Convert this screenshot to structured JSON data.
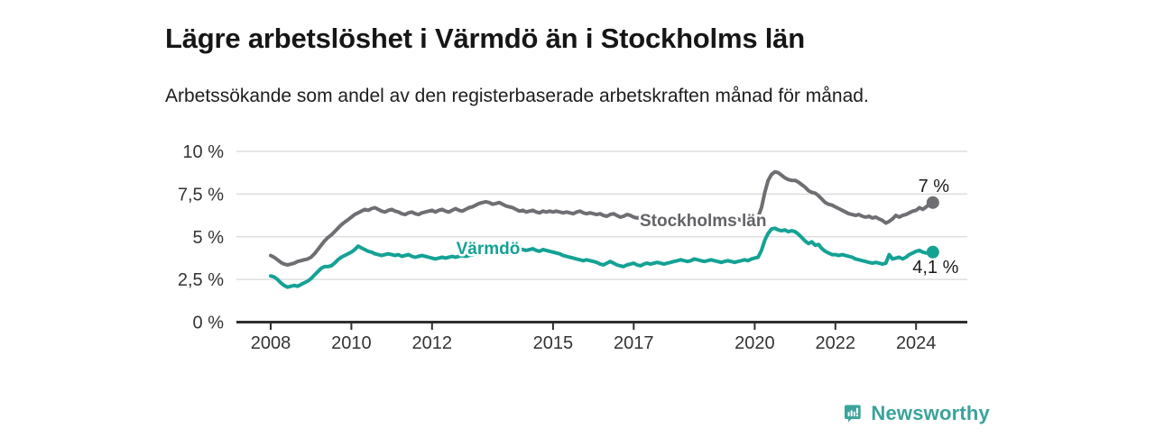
{
  "header": {
    "title": "Lägre arbetslöshet i Värmdö än i Stockholms län",
    "subtitle": "Arbetssökande som andel av den registerbaserade arbetskraften månad för månad."
  },
  "footer": {
    "brand": "Newsworthy",
    "brand_color": "#3ba39b",
    "logo_icon": "bar-chart-speech-bubble"
  },
  "chart_data": {
    "type": "line",
    "title": "Lägre arbetslöshet i Värmdö än i Stockholms län",
    "subtitle": "Arbetssökande som andel av den registerbaserade arbetskraften månad för månad.",
    "xlabel": "",
    "ylabel": "",
    "grid": true,
    "grid_color": "#d8d8d8",
    "axis_color": "#2e2e2e",
    "tick_text_color": "#333333",
    "end_label_color": "#1a1a1a",
    "ylim": [
      0,
      10
    ],
    "xlim_years": [
      2007.15,
      2025.3
    ],
    "x_start_year": 2008,
    "x_interval_months": 1,
    "y_ticks": [
      {
        "value": 0,
        "label": "0 %"
      },
      {
        "value": 2.5,
        "label": "2,5 %"
      },
      {
        "value": 5,
        "label": "5 %"
      },
      {
        "value": 7.5,
        "label": "7,5 %"
      },
      {
        "value": 10,
        "label": "10 %"
      }
    ],
    "x_ticks": [
      {
        "value": 2008,
        "label": "2008"
      },
      {
        "value": 2010,
        "label": "2010"
      },
      {
        "value": 2012,
        "label": "2012"
      },
      {
        "value": 2015,
        "label": "2015"
      },
      {
        "value": 2017,
        "label": "2017"
      },
      {
        "value": 2020,
        "label": "2020"
      },
      {
        "value": 2022,
        "label": "2022"
      },
      {
        "value": 2024,
        "label": "2024"
      }
    ],
    "series": [
      {
        "name": "Stockholms län",
        "color": "#6e6e73",
        "label_color": "#636368",
        "end_label": "7 %",
        "end_label_offset": [
          1,
          -12
        ],
        "end_dot": true,
        "label_pos": {
          "x": 2017.15,
          "y": 6.0,
          "anchor": "start"
        },
        "values": [
          3.9,
          3.8,
          3.65,
          3.5,
          3.4,
          3.35,
          3.4,
          3.45,
          3.55,
          3.6,
          3.65,
          3.7,
          3.8,
          4.0,
          4.25,
          4.5,
          4.75,
          4.95,
          5.1,
          5.3,
          5.5,
          5.7,
          5.85,
          6.0,
          6.15,
          6.3,
          6.4,
          6.5,
          6.6,
          6.55,
          6.65,
          6.7,
          6.6,
          6.5,
          6.45,
          6.55,
          6.6,
          6.5,
          6.45,
          6.35,
          6.3,
          6.4,
          6.45,
          6.35,
          6.3,
          6.4,
          6.45,
          6.5,
          6.55,
          6.45,
          6.55,
          6.6,
          6.5,
          6.45,
          6.55,
          6.65,
          6.55,
          6.5,
          6.6,
          6.7,
          6.75,
          6.85,
          6.95,
          7.0,
          7.05,
          7.0,
          6.9,
          6.95,
          7.0,
          6.9,
          6.8,
          6.75,
          6.7,
          6.6,
          6.5,
          6.55,
          6.45,
          6.5,
          6.55,
          6.45,
          6.4,
          6.5,
          6.45,
          6.5,
          6.45,
          6.5,
          6.45,
          6.4,
          6.45,
          6.4,
          6.35,
          6.45,
          6.5,
          6.4,
          6.35,
          6.4,
          6.35,
          6.3,
          6.35,
          6.25,
          6.2,
          6.3,
          6.35,
          6.25,
          6.15,
          6.2,
          6.3,
          6.25,
          6.15,
          6.1,
          6.15,
          6.2,
          6.1,
          6.05,
          6.1,
          6.15,
          6.05,
          6.0,
          6.05,
          6.1,
          6.05,
          6.0,
          5.95,
          5.9,
          5.85,
          5.9,
          5.95,
          5.85,
          5.8,
          5.85,
          5.9,
          5.95,
          5.9,
          5.85,
          5.9,
          5.95,
          6.0,
          5.95,
          6.0,
          6.05,
          5.95,
          5.9,
          5.95,
          6.0,
          6.05,
          6.15,
          6.7,
          7.6,
          8.3,
          8.65,
          8.8,
          8.75,
          8.6,
          8.45,
          8.35,
          8.3,
          8.3,
          8.2,
          8.05,
          7.9,
          7.7,
          7.6,
          7.55,
          7.4,
          7.2,
          7.0,
          6.9,
          6.85,
          6.75,
          6.65,
          6.55,
          6.45,
          6.35,
          6.3,
          6.25,
          6.3,
          6.2,
          6.15,
          6.2,
          6.1,
          6.15,
          6.05,
          5.95,
          5.8,
          5.9,
          6.05,
          6.25,
          6.15,
          6.25,
          6.3,
          6.4,
          6.5,
          6.55,
          6.7,
          6.6,
          6.75,
          6.9,
          7.0
        ]
      },
      {
        "name": "Värmdö",
        "color": "#14a295",
        "label_color": "#14a295",
        "end_label": "4,1 %",
        "end_label_offset": [
          3,
          23
        ],
        "end_dot": true,
        "label_pos": {
          "x": 2012.6,
          "y": 4.35,
          "anchor": "start"
        },
        "values": [
          2.7,
          2.65,
          2.5,
          2.3,
          2.15,
          2.05,
          2.1,
          2.15,
          2.1,
          2.2,
          2.3,
          2.4,
          2.55,
          2.75,
          2.95,
          3.15,
          3.25,
          3.25,
          3.3,
          3.45,
          3.65,
          3.8,
          3.9,
          4.0,
          4.1,
          4.25,
          4.45,
          4.35,
          4.25,
          4.15,
          4.1,
          4.0,
          3.95,
          3.9,
          3.95,
          4.0,
          3.95,
          3.9,
          3.95,
          3.85,
          3.9,
          3.95,
          3.85,
          3.8,
          3.85,
          3.9,
          3.85,
          3.8,
          3.75,
          3.7,
          3.75,
          3.8,
          3.75,
          3.8,
          3.85,
          3.8,
          3.85,
          3.9,
          3.85,
          3.9,
          3.95,
          4.0,
          3.95,
          4.0,
          4.05,
          4.1,
          4.05,
          4.0,
          4.05,
          4.1,
          4.15,
          4.2,
          4.25,
          4.2,
          4.3,
          4.25,
          4.2,
          4.25,
          4.3,
          4.2,
          4.15,
          4.25,
          4.2,
          4.15,
          4.1,
          4.05,
          4.0,
          3.9,
          3.85,
          3.8,
          3.75,
          3.7,
          3.65,
          3.6,
          3.65,
          3.6,
          3.55,
          3.5,
          3.4,
          3.35,
          3.45,
          3.55,
          3.45,
          3.35,
          3.3,
          3.25,
          3.35,
          3.4,
          3.45,
          3.35,
          3.3,
          3.4,
          3.45,
          3.4,
          3.45,
          3.5,
          3.45,
          3.4,
          3.45,
          3.5,
          3.55,
          3.6,
          3.65,
          3.6,
          3.55,
          3.6,
          3.7,
          3.65,
          3.6,
          3.55,
          3.6,
          3.65,
          3.6,
          3.55,
          3.5,
          3.55,
          3.6,
          3.55,
          3.5,
          3.55,
          3.6,
          3.65,
          3.6,
          3.7,
          3.75,
          3.8,
          4.2,
          4.8,
          5.2,
          5.45,
          5.5,
          5.4,
          5.35,
          5.4,
          5.3,
          5.35,
          5.3,
          5.15,
          4.95,
          4.75,
          4.6,
          4.7,
          4.5,
          4.55,
          4.3,
          4.15,
          4.05,
          3.95,
          3.95,
          3.9,
          3.95,
          3.9,
          3.85,
          3.8,
          3.7,
          3.65,
          3.6,
          3.55,
          3.5,
          3.45,
          3.5,
          3.45,
          3.4,
          3.45,
          3.95,
          3.7,
          3.75,
          3.8,
          3.7,
          3.8,
          3.95,
          4.05,
          4.15,
          4.2,
          4.1,
          4.05,
          4.05,
          4.1
        ]
      }
    ],
    "legend_position": "inline-labels"
  }
}
